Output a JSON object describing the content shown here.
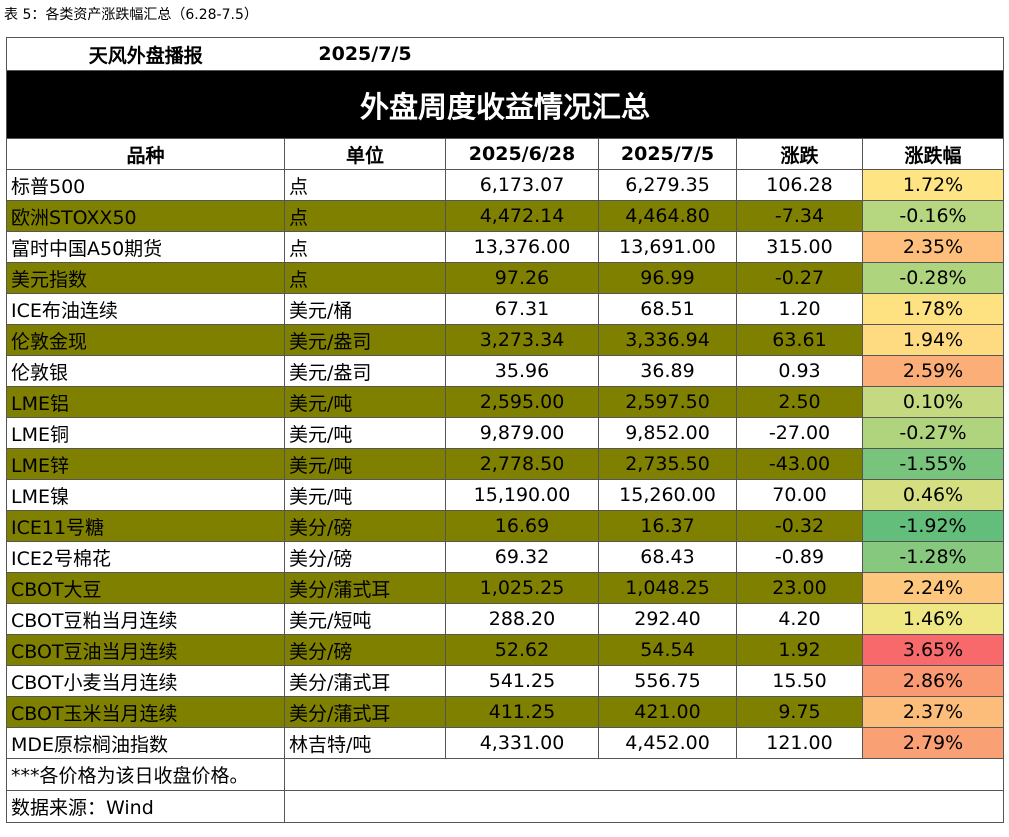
{
  "caption": "表 5：各类资产涨跌幅汇总（6.28-7.5）",
  "header": {
    "brand": "天风外盘播报",
    "date": "2025/7/5"
  },
  "title": "外盘周度收益情况汇总",
  "table": {
    "columns": [
      "品种",
      "单位",
      "2025/6/28",
      "2025/7/5",
      "涨跌",
      "涨跌幅"
    ],
    "rows": [
      {
        "cells": [
          "标普500",
          "点",
          "6,173.07",
          "6,279.35",
          "106.28",
          "1.72%"
        ],
        "color": "#fee482"
      },
      {
        "cells": [
          "欧洲STOXX50",
          "点",
          "4,472.14",
          "4,464.80",
          "-7.34",
          "-0.16%"
        ],
        "color": "#b6d67f"
      },
      {
        "cells": [
          "富时中国A50期货",
          "点",
          "13,376.00",
          "13,691.00",
          "315.00",
          "2.35%"
        ],
        "color": "#fdbf7b"
      },
      {
        "cells": [
          "美元指数",
          "点",
          "97.26",
          "96.99",
          "-0.27",
          "-0.28%"
        ],
        "color": "#afd47e"
      },
      {
        "cells": [
          "ICE布油连续",
          "美元/桶",
          "67.31",
          "68.51",
          "1.20",
          "1.78%"
        ],
        "color": "#fee281"
      },
      {
        "cells": [
          "伦敦金现",
          "美元/盎司",
          "3,273.34",
          "3,336.94",
          "63.61",
          "1.94%"
        ],
        "color": "#fedb80"
      },
      {
        "cells": [
          "伦敦银",
          "美元/盎司",
          "35.96",
          "36.89",
          "0.93",
          "2.59%"
        ],
        "color": "#fbae77"
      },
      {
        "cells": [
          "LME铝",
          "美元/吨",
          "2,595.00",
          "2,597.50",
          "2.50",
          "0.10%"
        ],
        "color": "#c5da80"
      },
      {
        "cells": [
          "LME铜",
          "美元/吨",
          "9,879.00",
          "9,852.00",
          "-27.00",
          "-0.27%"
        ],
        "color": "#b0d47e"
      },
      {
        "cells": [
          "LME锌",
          "美元/吨",
          "2,778.50",
          "2,735.50",
          "-43.00",
          "-1.55%"
        ],
        "color": "#79c47c"
      },
      {
        "cells": [
          "LME镍",
          "美元/吨",
          "15,190.00",
          "15,260.00",
          "70.00",
          "0.46%"
        ],
        "color": "#d5df81"
      },
      {
        "cells": [
          "ICE11号糖",
          "美分/磅",
          "16.69",
          "16.37",
          "-0.32",
          "-1.92%"
        ],
        "color": "#63be7b"
      },
      {
        "cells": [
          "ICE2号棉花",
          "美分/磅",
          "69.32",
          "68.43",
          "-0.89",
          "-1.28%"
        ],
        "color": "#86c87d"
      },
      {
        "cells": [
          "CBOT大豆",
          "美分/蒲式耳",
          "1,025.25",
          "1,048.25",
          "23.00",
          "2.24%"
        ],
        "color": "#fdc87d"
      },
      {
        "cells": [
          "CBOT豆粕当月连续",
          "美元/短吨",
          "288.20",
          "292.40",
          "4.20",
          "1.46%"
        ],
        "color": "#eee784"
      },
      {
        "cells": [
          "CBOT豆油当月连续",
          "美分/磅",
          "52.62",
          "54.54",
          "1.92",
          "3.65%"
        ],
        "color": "#f8696b"
      },
      {
        "cells": [
          "CBOT小麦当月连续",
          "美分/蒲式耳",
          "541.25",
          "556.75",
          "15.50",
          "2.86%"
        ],
        "color": "#fa9a73"
      },
      {
        "cells": [
          "CBOT玉米当月连续",
          "美分/蒲式耳",
          "411.25",
          "421.00",
          "9.75",
          "2.37%"
        ],
        "color": "#fcbd7b"
      },
      {
        "cells": [
          "MDE原棕榈油指数",
          "林吉特/吨",
          "4,331.00",
          "4,452.00",
          "121.00",
          "2.79%"
        ],
        "color": "#faa075"
      }
    ]
  },
  "notes": [
    "***各价格为该日收盘价格。",
    "数据来源：Wind"
  ]
}
